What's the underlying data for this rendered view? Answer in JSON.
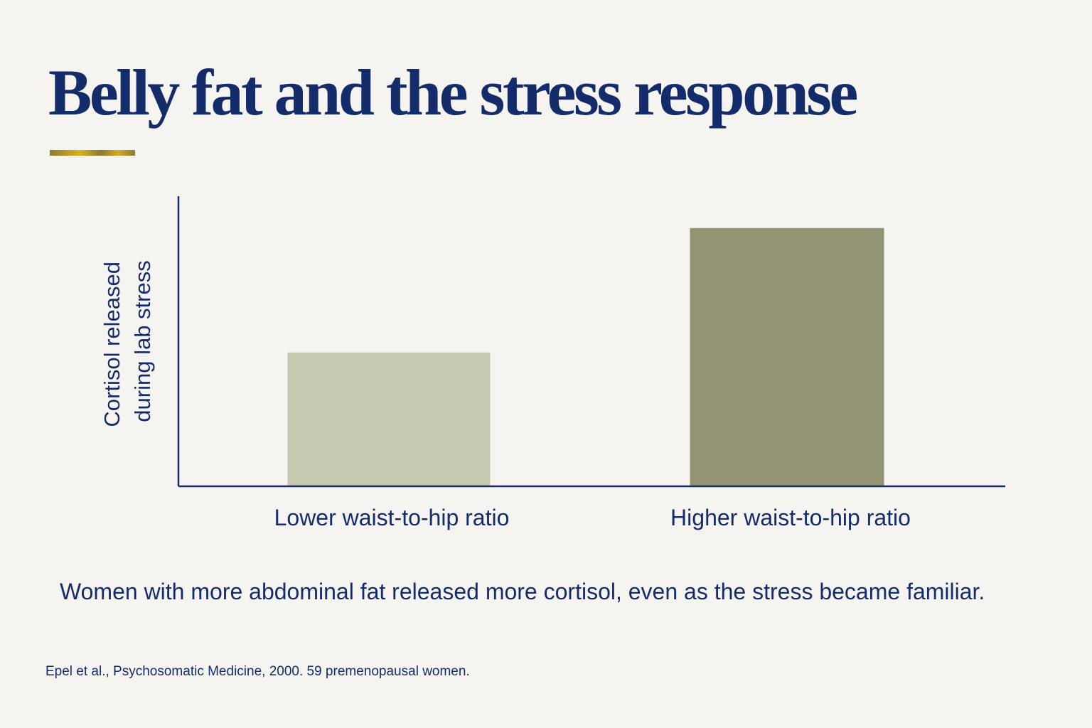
{
  "title": "Belly fat and the stress response",
  "caption": "Women with more abdominal fat released more cortisol, even as the stress became familiar.",
  "source": "Epel et al., Psychosomatic Medicine, 2000. 59 premenopausal women.",
  "colors": {
    "axis": "#152c6b",
    "text": "#152c6b",
    "background": "#f6f4f0",
    "accent": "#c9a227"
  },
  "chart_data": {
    "type": "bar",
    "categories": [
      "Lower waist-to-hip ratio",
      "Higher waist-to-hip ratio"
    ],
    "values": [
      0.46,
      0.89
    ],
    "bar_colors": [
      "#c7c9b1",
      "#939473"
    ],
    "ylabel": [
      "Cortisol released",
      "during lab stress"
    ],
    "xlabel": "",
    "ylim": [
      0,
      1
    ],
    "grid": false,
    "legend": "none"
  }
}
